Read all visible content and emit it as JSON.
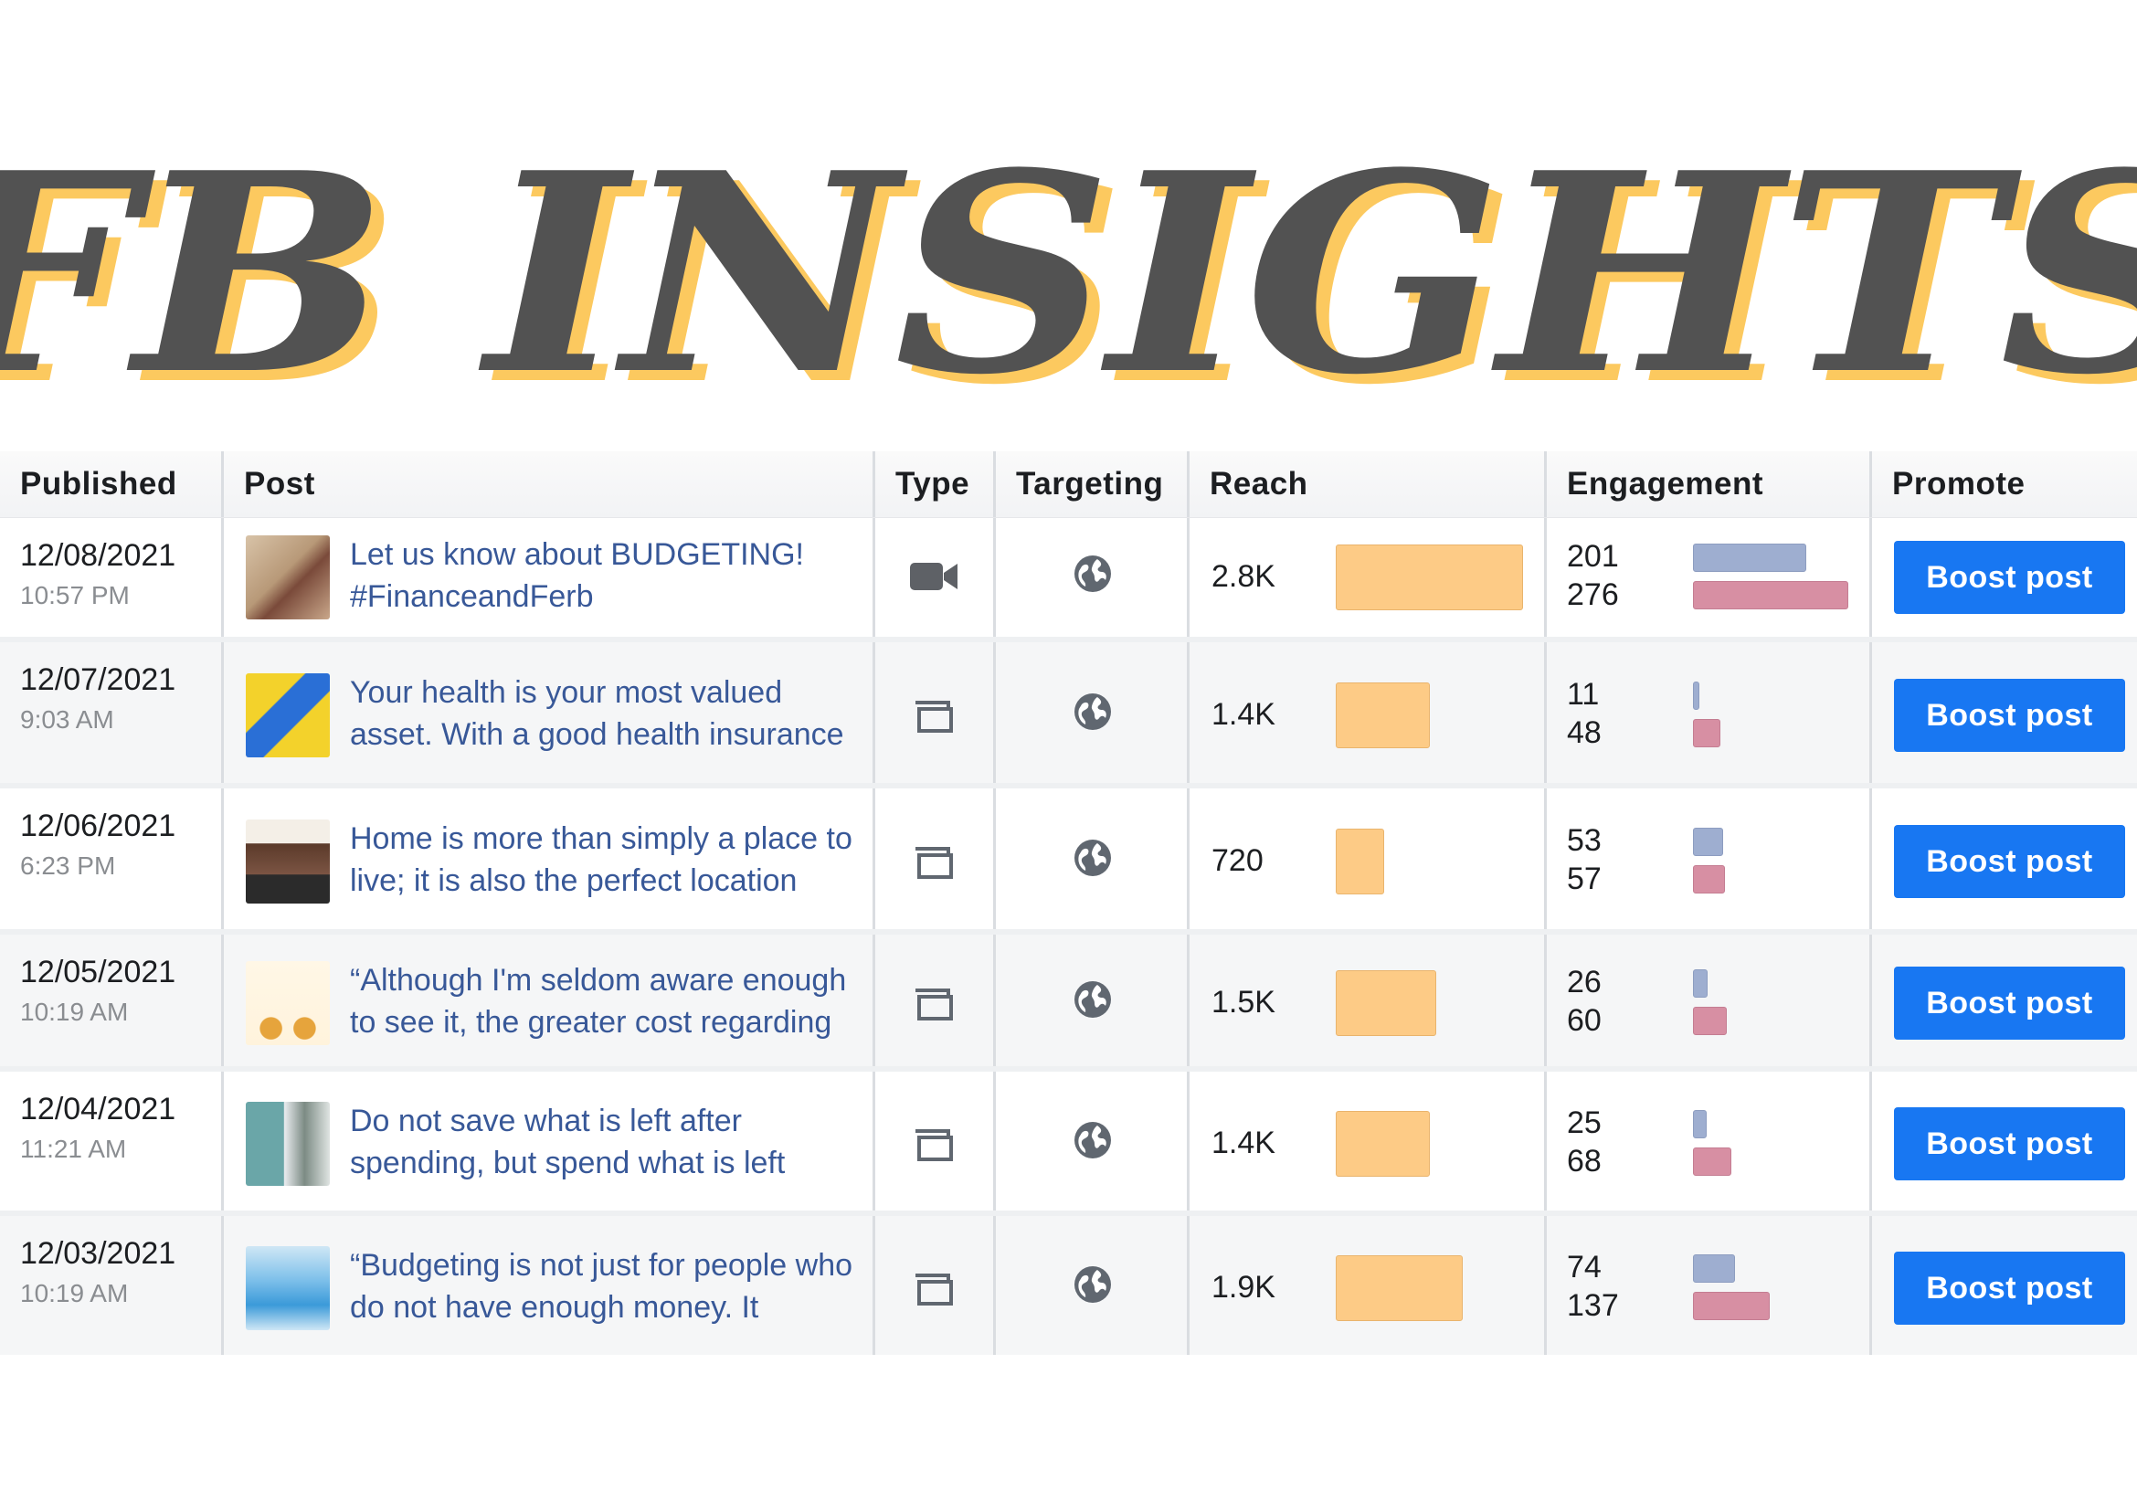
{
  "title": "FB INSIGHTS",
  "colors": {
    "title": "#525252",
    "title_shadow": "#fcc95f",
    "link": "#385898",
    "boost": "#1877f2",
    "reach_bar": "#fdcb86",
    "engagement_bar_1": "#9eaed0",
    "engagement_bar_2": "#d78fa3"
  },
  "table": {
    "columns": [
      "Published",
      "Post",
      "Type",
      "Targeting",
      "Reach",
      "Engagement",
      "Promote"
    ],
    "rows": [
      {
        "date": "12/08/2021",
        "time": "10:57 PM",
        "post": "Let us know about BUDGETING! #FinanceandFerb",
        "type_icon": "video-camera-icon",
        "targeting_icon": "globe-icon",
        "reach": "2.8K",
        "reach_fraction": 1.0,
        "eng_1": "201",
        "eng_2": "276",
        "button": "Boost post"
      },
      {
        "date": "12/07/2021",
        "time": "9:03 AM",
        "post": "Your health is your most valued asset. With a good health insurance",
        "type_icon": "photo-album-icon",
        "targeting_icon": "globe-icon",
        "reach": "1.4K",
        "reach_fraction": 0.5,
        "eng_1": "11",
        "eng_2": "48",
        "button": "Boost post"
      },
      {
        "date": "12/06/2021",
        "time": "6:23 PM",
        "post": "Home is more than simply a place to live; it is also the perfect location",
        "type_icon": "photo-album-icon",
        "targeting_icon": "globe-icon",
        "reach": "720",
        "reach_fraction": 0.257,
        "eng_1": "53",
        "eng_2": "57",
        "button": "Boost post"
      },
      {
        "date": "12/05/2021",
        "time": "10:19 AM",
        "post": "“Although I'm seldom aware enough to see it, the greater cost regarding",
        "type_icon": "photo-album-icon",
        "targeting_icon": "globe-icon",
        "reach": "1.5K",
        "reach_fraction": 0.536,
        "eng_1": "26",
        "eng_2": "60",
        "button": "Boost post"
      },
      {
        "date": "12/04/2021",
        "time": "11:21 AM",
        "post": "Do not save what is left after spending, but spend what is left",
        "type_icon": "photo-album-icon",
        "targeting_icon": "globe-icon",
        "reach": "1.4K",
        "reach_fraction": 0.5,
        "eng_1": "25",
        "eng_2": "68",
        "button": "Boost post"
      },
      {
        "date": "12/03/2021",
        "time": "10:19 AM",
        "post": "“Budgeting is not just for people who do not have enough money. It",
        "type_icon": "photo-album-icon",
        "targeting_icon": "globe-icon",
        "reach": "1.9K",
        "reach_fraction": 0.679,
        "eng_1": "74",
        "eng_2": "137",
        "button": "Boost post"
      }
    ]
  }
}
